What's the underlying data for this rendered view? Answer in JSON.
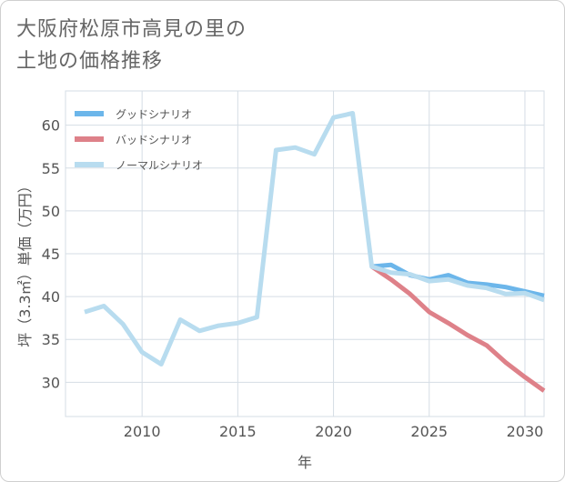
{
  "title": {
    "line1": "大阪府松原市高見の里の",
    "line2": "土地の価格推移"
  },
  "colors": {
    "good": "#6cb6ea",
    "bad": "#de8189",
    "normal": "#b8dcef",
    "grid": "#d5dde5",
    "axis": "#555555"
  },
  "chart_data": {
    "type": "line",
    "title": "大阪府松原市高見の里の土地の価格推移",
    "xlabel": "年",
    "ylabel": "坪（3.3㎡）単価（万円）",
    "xlim": [
      2006,
      2031
    ],
    "ylim": [
      26,
      64
    ],
    "x_ticks": [
      2010,
      2015,
      2020,
      2025,
      2030
    ],
    "x_tick_labels": [
      "2010",
      "2015",
      "2020",
      "2025",
      "2030"
    ],
    "y_ticks": [
      30,
      35,
      40,
      45,
      50,
      55,
      60
    ],
    "y_tick_labels": [
      "30",
      "35",
      "40",
      "45",
      "50",
      "55",
      "60"
    ],
    "grid": true,
    "legend_position": "top-left",
    "series": [
      {
        "key": "good",
        "name": "グッドシナリオ",
        "x": [
          2022,
          2023,
          2024,
          2025,
          2026,
          2027,
          2028,
          2029,
          2030,
          2031
        ],
        "y": [
          43.5,
          43.7,
          42.5,
          42.0,
          42.5,
          41.6,
          41.4,
          41.1,
          40.6,
          40.1
        ]
      },
      {
        "key": "bad",
        "name": "バッドシナリオ",
        "x": [
          2022,
          2023,
          2024,
          2025,
          2026,
          2027,
          2028,
          2029,
          2030,
          2031
        ],
        "y": [
          43.5,
          42.0,
          40.3,
          38.2,
          36.9,
          35.5,
          34.3,
          32.3,
          30.6,
          29.0
        ]
      },
      {
        "key": "normal",
        "name": "ノーマルシナリオ",
        "x": [
          2007,
          2008,
          2009,
          2010,
          2011,
          2012,
          2013,
          2014,
          2015,
          2016,
          2017,
          2018,
          2019,
          2020,
          2021,
          2022,
          2023,
          2024,
          2025,
          2026,
          2027,
          2028,
          2029,
          2030,
          2031
        ],
        "y": [
          38.2,
          38.9,
          36.8,
          33.5,
          32.1,
          37.3,
          36.0,
          36.6,
          36.9,
          37.6,
          57.1,
          57.4,
          56.6,
          60.9,
          61.4,
          43.5,
          42.8,
          42.6,
          41.8,
          42.0,
          41.3,
          41.0,
          40.3,
          40.4,
          39.6
        ]
      }
    ]
  }
}
